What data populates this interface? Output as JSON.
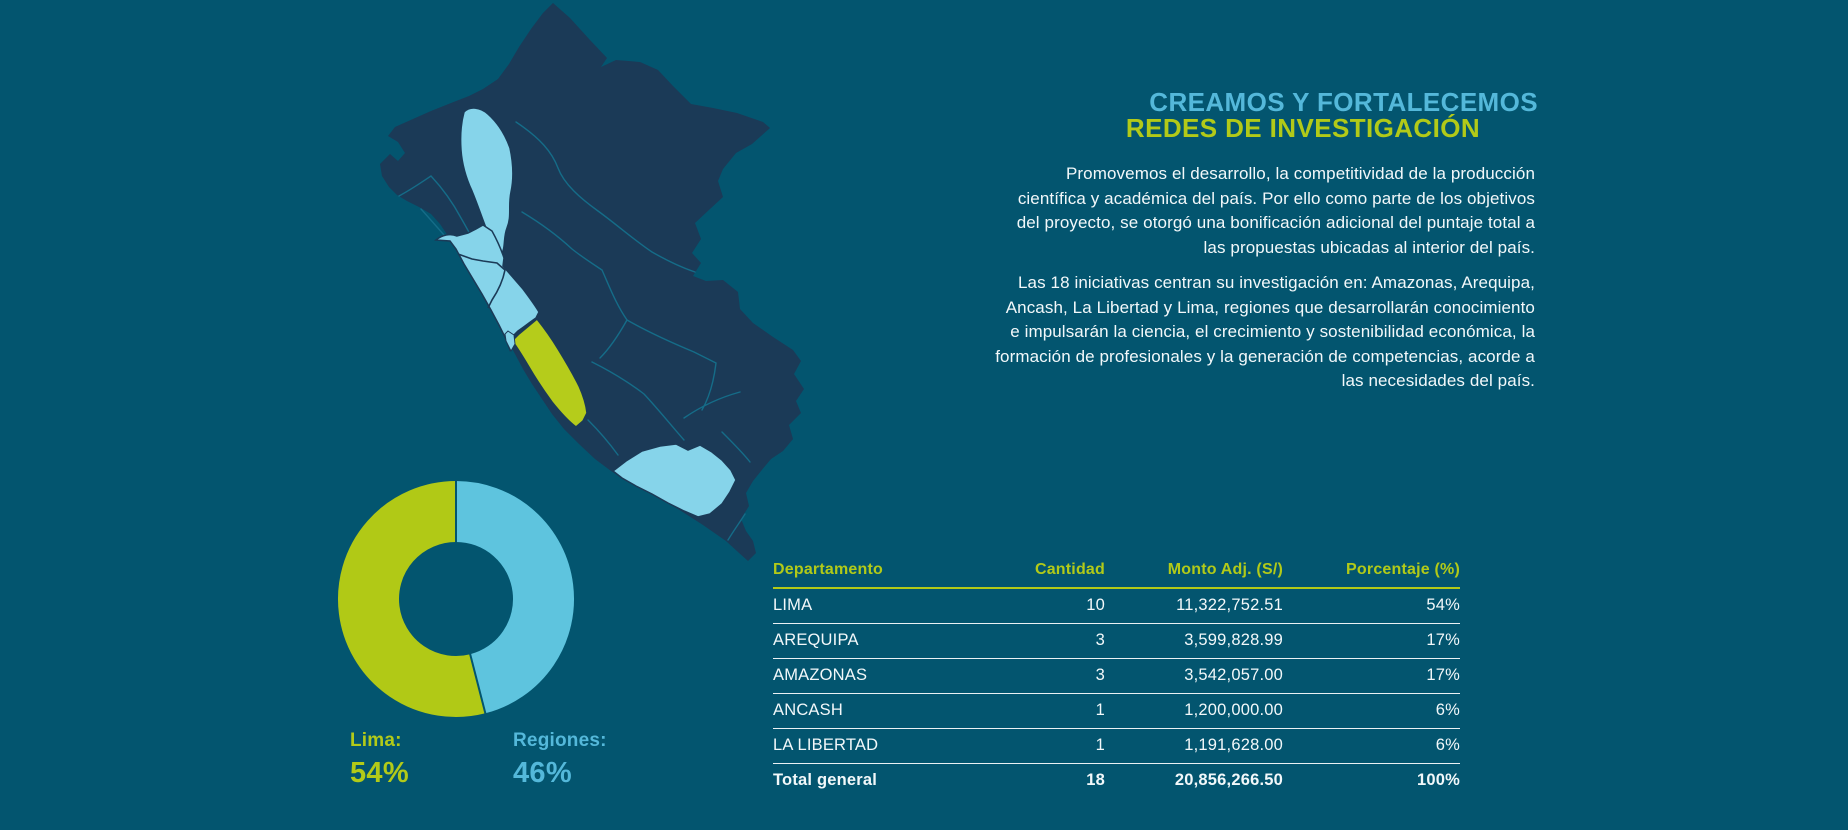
{
  "colors": {
    "background": "#03556F",
    "map_base": "#1B3A57",
    "map_border": "#156C88",
    "highlight_blue": "#86D4EA",
    "highlight_green": "#B5CC1B",
    "donut_blue": "#5EC4DE",
    "donut_green": "#B1C916",
    "title_blue": "#54B8DA",
    "title_green": "#B2CA18",
    "text": "#F2F8FA"
  },
  "title": {
    "line1": "CREAMOS Y FORTALECEMOS",
    "line2": "REDES DE INVESTIGACIÓN"
  },
  "paragraphs": [
    "Promovemos el desarrollo, la competitividad de la producción científica y académica del país. Por ello como parte de los objetivos del proyecto, se otorgó una bonificación adicional del puntaje total a las propuestas ubicadas al interior del país.",
    "Las 18 iniciativas centran su investigación en: Amazonas, Arequipa, Ancash, La Libertad y Lima, regiones que desarrollarán conocimiento e impulsarán la ciencia, el crecimiento y sostenibilidad económica, la formación de profesionales y la generación de competencias, acorde a las necesidades del país."
  ],
  "donut": {
    "segments": [
      {
        "label": "Lima:",
        "value_label": "54%",
        "value": 54
      },
      {
        "label": "Regiones:",
        "value_label": "46%",
        "value": 46
      }
    ]
  },
  "map": {
    "country": "Perú",
    "highlighted_blue": [
      "AMAZONAS",
      "LA LIBERTAD",
      "ANCASH",
      "AREQUIPA"
    ],
    "highlighted_green": [
      "LIMA"
    ]
  },
  "table": {
    "headers": [
      "Departamento",
      "Cantidad",
      "Monto Adj. (S/)",
      "Porcentaje (%)"
    ],
    "rows": [
      [
        "LIMA",
        "10",
        "11,322,752.51",
        "54%"
      ],
      [
        "AREQUIPA",
        "3",
        "3,599,828.99",
        "17%"
      ],
      [
        "AMAZONAS",
        "3",
        "3,542,057.00",
        "17%"
      ],
      [
        "ANCASH",
        "1",
        "1,200,000.00",
        "6%"
      ],
      [
        "LA LIBERTAD",
        "1",
        "1,191,628.00",
        "6%"
      ]
    ],
    "total_row": [
      "Total general",
      "18",
      "20,856,266.50",
      "100%"
    ]
  },
  "chart_data": [
    {
      "type": "pie",
      "title": "Distribución de iniciativas Lima vs Regiones",
      "labels": [
        "Lima",
        "Regiones"
      ],
      "values": [
        54,
        46
      ],
      "unit": "%",
      "legend_position": "below",
      "donut": true
    },
    {
      "type": "table",
      "title": "Iniciativas por departamento",
      "columns": [
        "Departamento",
        "Cantidad",
        "Monto Adj. (S/)",
        "Porcentaje (%)"
      ],
      "rows": [
        [
          "LIMA",
          10,
          "11,322,752.51",
          "54%"
        ],
        [
          "AREQUIPA",
          3,
          "3,599,828.99",
          "17%"
        ],
        [
          "AMAZONAS",
          3,
          "3,542,057.00",
          "17%"
        ],
        [
          "ANCASH",
          1,
          "1,200,000.00",
          "6%"
        ],
        [
          "LA LIBERTAD",
          1,
          "1,191,628.00",
          "6%"
        ],
        [
          "Total general",
          18,
          "20,856,266.50",
          "100%"
        ]
      ]
    }
  ]
}
